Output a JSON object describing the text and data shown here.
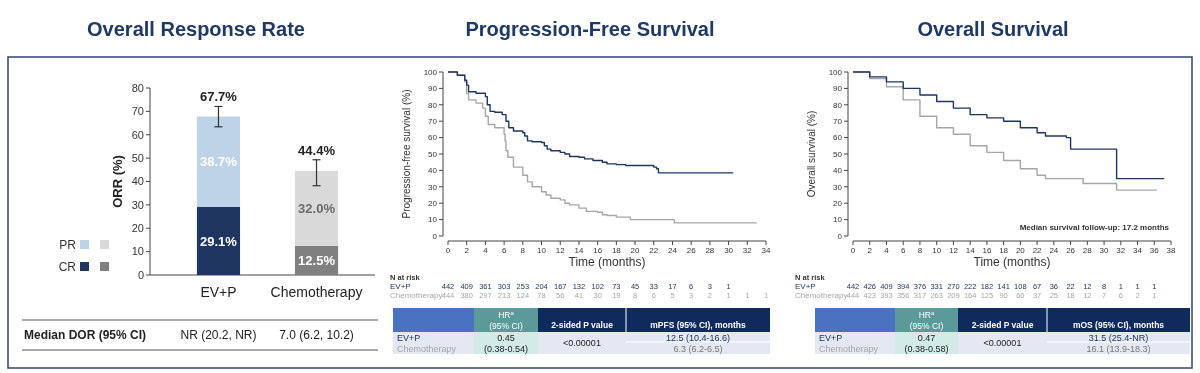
{
  "chart_data": [
    {
      "type": "bar",
      "title": "Overall Response Rate",
      "ylabel": "ORR (%)",
      "categories": [
        "EV+P",
        "Chemotherapy"
      ],
      "stacked": true,
      "ylim": [
        0,
        80
      ],
      "yticks": [
        0,
        10,
        20,
        30,
        40,
        50,
        60,
        70,
        80
      ],
      "legend": "left",
      "series": [
        {
          "name": "CR",
          "colors": [
            "#1f3660",
            "#808080"
          ],
          "values": [
            29.1,
            12.5
          ],
          "value_labels": [
            "29.1%",
            "12.5%"
          ]
        },
        {
          "name": "PR",
          "colors": [
            "#bdd3e8",
            "#d9d9d9"
          ],
          "values": [
            38.7,
            32.0
          ],
          "value_labels": [
            "38.7%",
            "32.0%"
          ],
          "errors": [
            [
              63.4,
              72.1
            ],
            [
              38.2,
              49.3
            ]
          ]
        }
      ],
      "totals": [
        "67.7%",
        "44.4%"
      ],
      "annotations": [
        "Median DOR (95% CI)",
        "NR (20.2, NR)",
        "7.0 (6.2, 10.2)"
      ]
    },
    {
      "type": "step",
      "title": "Progression-Free Survival",
      "xlabel": "Time (months)",
      "ylabel": "Progression-free survival (%)",
      "xlim": [
        0,
        34
      ],
      "xticks": [
        0,
        2,
        4,
        6,
        8,
        10,
        12,
        14,
        16,
        18,
        20,
        22,
        24,
        26,
        28,
        30,
        32,
        34
      ],
      "ylim": [
        0,
        100
      ],
      "yticks": [
        0,
        10,
        20,
        30,
        40,
        50,
        60,
        70,
        80,
        90,
        100
      ],
      "series": [
        {
          "name": "EV+P",
          "color": "#1f3660",
          "x": [
            0,
            1,
            1.8,
            2,
            2.2,
            3,
            4,
            4.2,
            4.5,
            5,
            5.8,
            6.2,
            6.5,
            7,
            8,
            8.2,
            8.5,
            9,
            10,
            10.3,
            10.6,
            11,
            12,
            12.5,
            13,
            14,
            14.6,
            15.5,
            16.5,
            17,
            18,
            19,
            22,
            22.3,
            22.5,
            30.5
          ],
          "values": [
            100,
            98,
            95,
            92,
            88,
            87,
            85,
            80,
            76,
            75.5,
            74,
            70,
            66,
            64,
            63,
            61,
            58,
            57.5,
            57,
            55,
            53,
            52,
            51,
            50,
            48.5,
            48,
            47,
            46,
            45,
            44,
            43.5,
            43,
            42,
            41,
            38.5,
            38.5
          ]
        },
        {
          "name": "Chemotherapy",
          "color": "#a6a6a6",
          "x": [
            0,
            1,
            1.8,
            2,
            2.2,
            3,
            3.7,
            4,
            4.3,
            5,
            6,
            6.1,
            6.2,
            6.4,
            7,
            8,
            8.5,
            9,
            10,
            10.5,
            11,
            12,
            12.5,
            13,
            14,
            14.8,
            16,
            16.5,
            17,
            18,
            19.5,
            24.2,
            33
          ],
          "values": [
            100,
            98,
            94,
            87,
            83,
            81,
            78,
            73,
            68,
            66,
            62,
            58,
            52,
            48,
            42,
            37,
            33,
            30,
            27,
            25,
            23,
            22,
            20,
            19,
            17,
            15,
            14.5,
            13,
            12.5,
            11.5,
            10,
            8,
            8
          ]
        }
      ],
      "annotations": [
        "N at risk",
        "442 409 361 303 253 204 167 132 102 73 45 33 17 6 3 1",
        "444 380 297 213 124 78 56 41 30 19 8 6 5 3 2 1 1 1",
        "HR$^{a}$ (95% CI)",
        "2-sided P value",
        "mPFS (95% CI), months",
        "0.45",
        "(0.38-0.54)",
        "<0.00001",
        "12.5 (10.4-16.6)",
        "6.3 (6.2-6.5)"
      ]
    },
    {
      "type": "step",
      "title": "Overall Survival",
      "xlabel": "Time (months)",
      "ylabel": "Overall survival (%)",
      "xlim": [
        0,
        38
      ],
      "xticks": [
        0,
        2,
        4,
        6,
        8,
        10,
        12,
        14,
        16,
        18,
        20,
        22,
        24,
        26,
        28,
        30,
        32,
        34,
        36,
        38
      ],
      "ylim": [
        0,
        100
      ],
      "yticks": [
        0,
        10,
        20,
        30,
        40,
        50,
        60,
        70,
        80,
        90,
        100
      ],
      "series": [
        {
          "name": "EV+P",
          "color": "#1f3660",
          "x": [
            0,
            2,
            4,
            6,
            8,
            10,
            12,
            14,
            16,
            18,
            20,
            22,
            23,
            25.5,
            26,
            31.5,
            37.2
          ],
          "values": [
            100,
            97,
            94,
            90,
            86,
            82,
            78,
            74,
            72,
            70,
            66,
            63,
            61,
            60,
            53,
            35,
            35
          ]
        },
        {
          "name": "Chemotherapy",
          "color": "#a6a6a6",
          "x": [
            0,
            2,
            4,
            6,
            8,
            10,
            12,
            14,
            16,
            18,
            20,
            22,
            23,
            27.5,
            31.5,
            36.3
          ],
          "values": [
            100,
            96,
            91,
            83,
            73,
            66,
            62,
            55,
            51,
            46,
            41,
            37,
            35,
            32,
            28,
            28
          ]
        }
      ],
      "annotations": [
        "N at risk",
        "442 426 409 394 376 331 270 222 182 141 108 67 36 22 12 8 1 1 1",
        "444 423 393 356 317 263 209 164 125 90 60 37 25 18 12 7 6 2 1",
        "HR$^{a}$ (95% CI)",
        "2-sided P value",
        "mOS (95% CI), months",
        "0.47",
        "(0.38-0.58)",
        "<0.00001",
        "31.5 (25.4-NR)",
        "16.1 (13.9-18.3)",
        "Median survival follow-up: 17.2 months"
      ]
    }
  ]
}
